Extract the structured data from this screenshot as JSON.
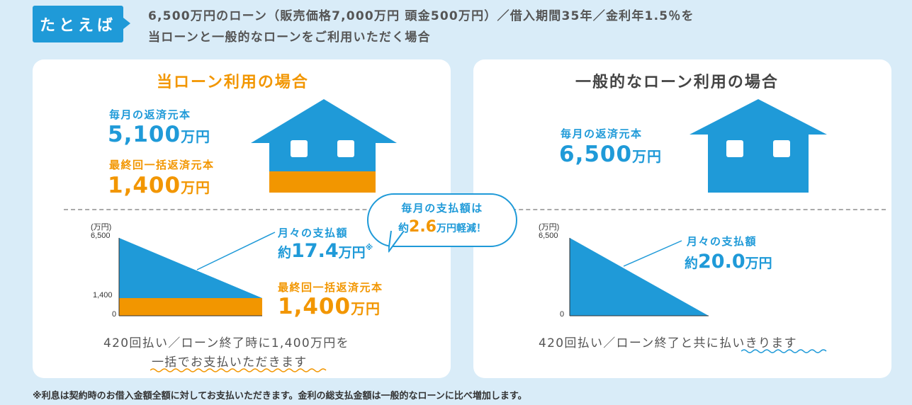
{
  "example": {
    "tag": "たとえば",
    "line1": "6,500万円のローン（販売価格7,000万円 頭金500万円）／借入期間35年／金利年1.5％を",
    "line2": "当ローンと一般的なローンをご利用いただく場合"
  },
  "left_panel": {
    "title": "当ローン利用の場合",
    "monthly_principal_label": "毎月の返済元本",
    "monthly_principal_value": "5,100",
    "monthly_principal_unit": "万円",
    "final_lump_label": "最終回一括返済元本",
    "final_lump_value": "1,400",
    "final_lump_unit": "万円",
    "chart_unit": "(万円)",
    "tick_top": "6,500",
    "tick_mid": "1,400",
    "tick_zero": "0",
    "monthly_payment_label": "月々の支払額",
    "monthly_payment_prefix": "約",
    "monthly_payment_value": "17.4",
    "monthly_payment_unit": "万円",
    "monthly_payment_mark": "※",
    "chart_lump_label": "最終回一括返済元本",
    "chart_lump_value": "1,400",
    "chart_lump_unit": "万円",
    "note_line1": "420回払い／ローン終了時に1,400万円を",
    "note_line2": "一括でお支払いただきます"
  },
  "bubble": {
    "line1": "毎月の支払額は",
    "prefix": "約",
    "value": "2.6",
    "suffix": "万円軽減！"
  },
  "right_panel": {
    "title": "一般的なローン利用の場合",
    "monthly_principal_label": "毎月の返済元本",
    "monthly_principal_value": "6,500",
    "monthly_principal_unit": "万円",
    "chart_unit": "(万円)",
    "tick_top": "6,500",
    "tick_zero": "0",
    "monthly_payment_label": "月々の支払額",
    "monthly_payment_prefix": "約",
    "monthly_payment_value": "20.0",
    "monthly_payment_unit": "万円",
    "note_plain": "420回払い／ローン終了と共に",
    "note_emph": "払いきります"
  },
  "footnote": "※利息は契約時のお借入金額全額に対してお支払いただきます。金利の総支払金額は一般的なローンに比べ増加します。",
  "colors": {
    "background": "#d9ecf8",
    "blue": "#1f9ad8",
    "orange": "#f29600"
  },
  "icons": [
    "house-icon",
    "speech-bubble"
  ]
}
